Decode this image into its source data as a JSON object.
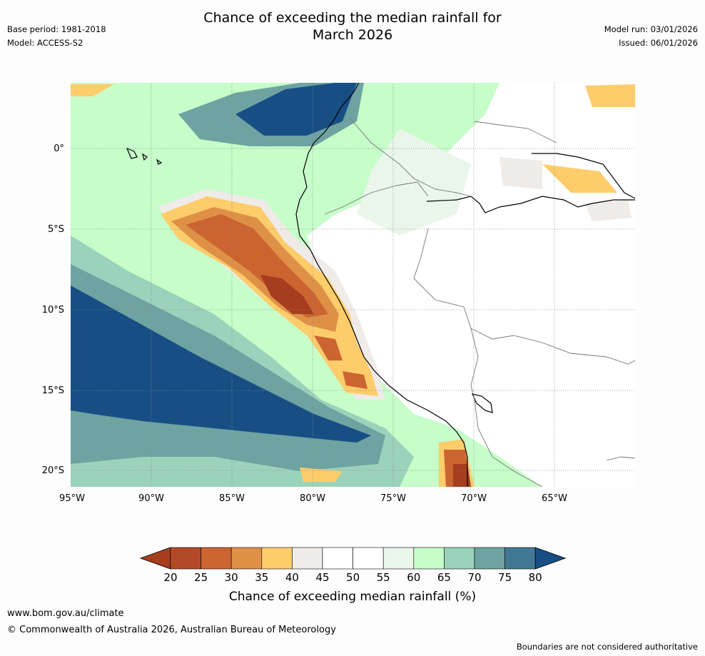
{
  "title_line1": "Chance of exceeding the median rainfall for",
  "title_line2": "March 2026",
  "meta": {
    "base_period": "Base period: 1981-2018",
    "model": "Model: ACCESS-S2",
    "model_run": "Model run: 03/01/2026",
    "issued": "Issued: 06/01/2026"
  },
  "axes": {
    "lat_labels": [
      "0°",
      "5°S",
      "10°S",
      "15°S",
      "20°S"
    ],
    "lon_labels": [
      "95°W",
      "90°W",
      "85°W",
      "80°W",
      "75°W",
      "70°W",
      "65°W"
    ]
  },
  "colorbar": {
    "ticks": [
      "20",
      "25",
      "30",
      "35",
      "40",
      "45",
      "50",
      "55",
      "60",
      "65",
      "70",
      "75",
      "80"
    ],
    "colors": [
      "#a63d1e",
      "#b34a27",
      "#cc6431",
      "#de9146",
      "#fdcc6b",
      "#efebe8",
      "#ffffff",
      "#ffffff",
      "#eaf6ea",
      "#c6fdc9",
      "#9bd2bb",
      "#6ea3a1",
      "#437894",
      "#174f85"
    ],
    "label": "Chance of exceeding median rainfall (%)"
  },
  "footer": {
    "url": "www.bom.gov.au/climate",
    "copyright": "© Commonwealth of Australia 2026, Australian Bureau of Meteorology",
    "note": "Boundaries are not considered authoritative"
  }
}
